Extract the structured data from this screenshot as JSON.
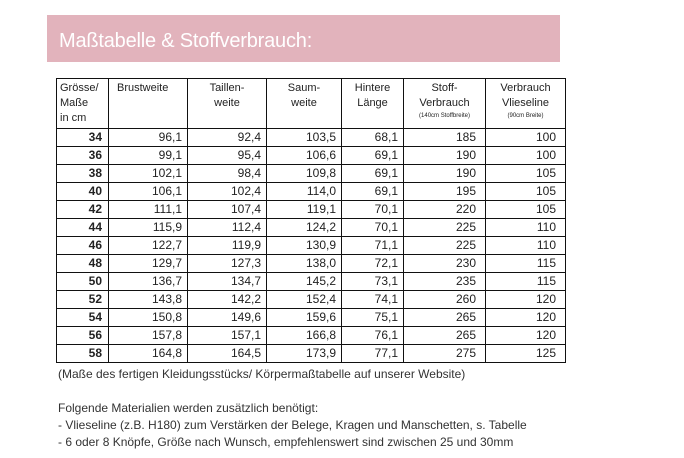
{
  "header": {
    "title": "Maßtabelle & Stoffverbrauch:",
    "banner_color": "#e2b3bc"
  },
  "table": {
    "columns": [
      {
        "label": "Grösse/ Maße in cm",
        "lines": [
          "Grösse/",
          "Maße",
          "in cm"
        ]
      },
      {
        "label": "Brustweite",
        "lines": [
          "Brustweite"
        ]
      },
      {
        "label": "Taillen- weite",
        "lines": [
          "Taillen-",
          "weite"
        ]
      },
      {
        "label": "Saum- weite",
        "lines": [
          "Saum-",
          "weite"
        ]
      },
      {
        "label": "Hintere Länge",
        "lines": [
          "Hintere",
          "Länge"
        ]
      },
      {
        "label": "Stoff- Verbrauch",
        "lines": [
          "Stoff-",
          "Verbrauch"
        ],
        "note": "(140cm Stoffbreite)"
      },
      {
        "label": "Verbrauch Vlieseline",
        "lines": [
          "Verbrauch",
          "Vlieseline"
        ],
        "note": "(90cm Breite)"
      }
    ],
    "rows": [
      {
        "size": "34",
        "brust": "96,1",
        "taille": "92,4",
        "saum": "103,5",
        "laenge": "68,1",
        "stoff": "185",
        "vlies": "100"
      },
      {
        "size": "36",
        "brust": "99,1",
        "taille": "95,4",
        "saum": "106,6",
        "laenge": "69,1",
        "stoff": "190",
        "vlies": "100"
      },
      {
        "size": "38",
        "brust": "102,1",
        "taille": "98,4",
        "saum": "109,8",
        "laenge": "69,1",
        "stoff": "190",
        "vlies": "105"
      },
      {
        "size": "40",
        "brust": "106,1",
        "taille": "102,4",
        "saum": "114,0",
        "laenge": "69,1",
        "stoff": "195",
        "vlies": "105"
      },
      {
        "size": "42",
        "brust": "111,1",
        "taille": "107,4",
        "saum": "119,1",
        "laenge": "70,1",
        "stoff": "220",
        "vlies": "105"
      },
      {
        "size": "44",
        "brust": "115,9",
        "taille": "112,4",
        "saum": "124,2",
        "laenge": "70,1",
        "stoff": "225",
        "vlies": "110"
      },
      {
        "size": "46",
        "brust": "122,7",
        "taille": "119,9",
        "saum": "130,9",
        "laenge": "71,1",
        "stoff": "225",
        "vlies": "110"
      },
      {
        "size": "48",
        "brust": "129,7",
        "taille": "127,3",
        "saum": "138,0",
        "laenge": "72,1",
        "stoff": "230",
        "vlies": "115"
      },
      {
        "size": "50",
        "brust": "136,7",
        "taille": "134,7",
        "saum": "145,2",
        "laenge": "73,1",
        "stoff": "235",
        "vlies": "115"
      },
      {
        "size": "52",
        "brust": "143,8",
        "taille": "142,2",
        "saum": "152,4",
        "laenge": "74,1",
        "stoff": "260",
        "vlies": "120"
      },
      {
        "size": "54",
        "brust": "150,8",
        "taille": "149,6",
        "saum": "159,6",
        "laenge": "75,1",
        "stoff": "265",
        "vlies": "120"
      },
      {
        "size": "56",
        "brust": "157,8",
        "taille": "157,1",
        "saum": "166,8",
        "laenge": "76,1",
        "stoff": "265",
        "vlies": "120"
      },
      {
        "size": "58",
        "brust": "164,8",
        "taille": "164,5",
        "saum": "173,9",
        "laenge": "77,1",
        "stoff": "275",
        "vlies": "125"
      }
    ]
  },
  "notes": {
    "caption": "(Maße des fertigen Kleidungsstücks/ Körpermaßtabelle auf unserer Website)",
    "materials_heading": "Folgende Materialien werden zusätzlich benötigt:",
    "materials": [
      "- Vlieseline (z.B. H180) zum Verstärken der Belege, Kragen und Manschetten, s. Tabelle",
      "- 6 oder 8 Knöpfe, Größe nach Wunsch, empfehlenswert sind zwischen 25 und 30mm"
    ]
  }
}
